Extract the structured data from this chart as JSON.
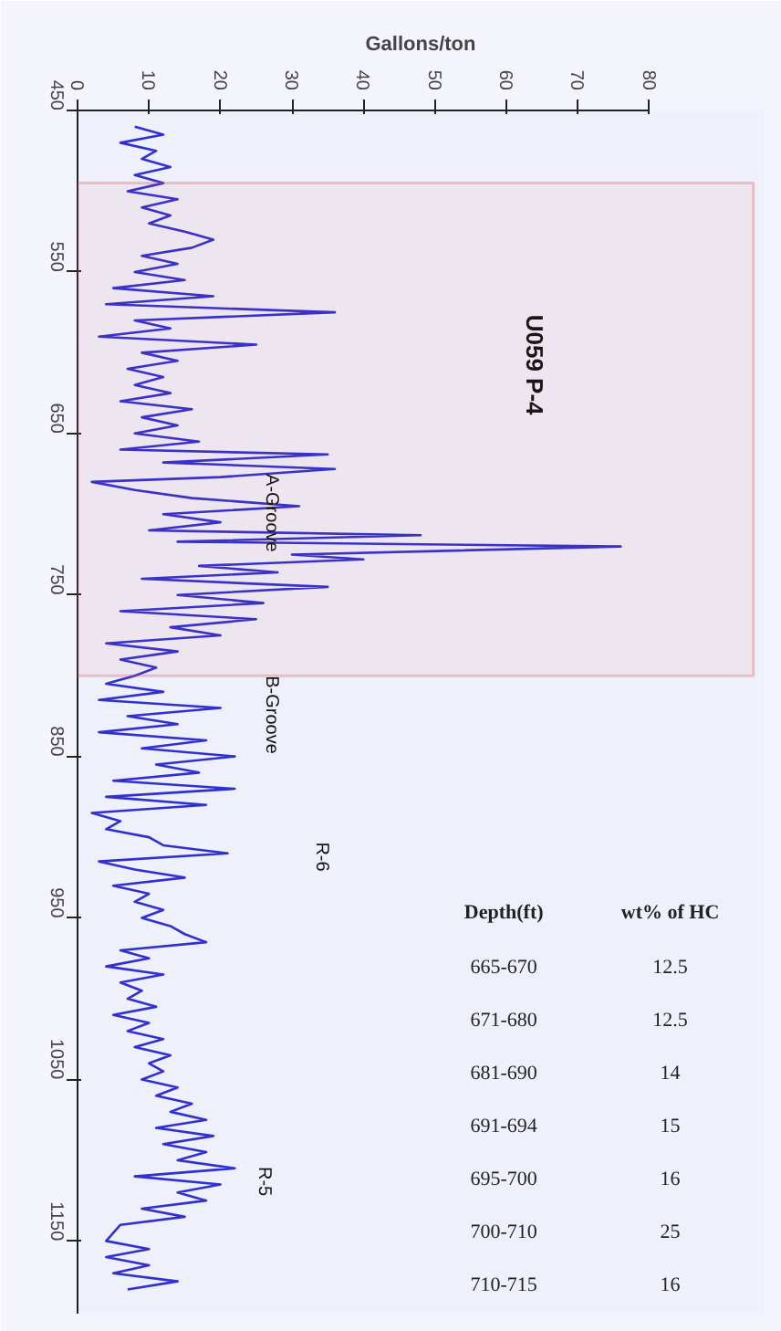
{
  "chart_data": {
    "type": "line",
    "orientation": "horizontal",
    "xlabel": "Gallons/ton",
    "xlim": [
      0,
      80
    ],
    "xticks": [
      0,
      10,
      20,
      30,
      40,
      50,
      60,
      70,
      80
    ],
    "ylim": [
      1195,
      450
    ],
    "yticks": [
      450,
      550,
      650,
      750,
      850,
      950,
      1050,
      1150
    ],
    "grid": false,
    "marker": "none",
    "line_style": "solid",
    "bands": [
      {
        "axis": "y",
        "from": 495,
        "to": 800,
        "label": "U059 P-4",
        "color": "#e05050"
      }
    ],
    "annotations": [
      {
        "text": "A-Groove",
        "x": 27,
        "y": 675
      },
      "B-Groove",
      "R-6",
      "R-5",
      "Depth(ft)",
      "wt% of HC",
      "665-670",
      "12.5",
      "671-680",
      "12.5",
      "681-690",
      "14",
      "691-694",
      "15",
      "695-700",
      "16",
      "700-710",
      "25",
      "710-715",
      "16"
    ],
    "series": [
      {
        "color": "#3030d0",
        "x": [
          460,
          465,
          470,
          475,
          480,
          485,
          490,
          495,
          500,
          505,
          510,
          515,
          520,
          525,
          530,
          535,
          540,
          545,
          550,
          555,
          560,
          565,
          570,
          575,
          580,
          585,
          590,
          595,
          600,
          605,
          610,
          615,
          620,
          625,
          630,
          635,
          640,
          645,
          650,
          655,
          660,
          663,
          668,
          672,
          677,
          680,
          685,
          690,
          695,
          700,
          705,
          710,
          713,
          717,
          720,
          725,
          728,
          732,
          736,
          740,
          745,
          750,
          755,
          760,
          765,
          770,
          775,
          780,
          785,
          790,
          795,
          800,
          805,
          810,
          815,
          820,
          825,
          830,
          835,
          840,
          845,
          850,
          855,
          860,
          865,
          870,
          875,
          880,
          885,
          890,
          895,
          900,
          905,
          910,
          915,
          920,
          925,
          930,
          935,
          940,
          945,
          950,
          955,
          960,
          965,
          970,
          975,
          980,
          985,
          990,
          995,
          1000,
          1005,
          1010,
          1015,
          1020,
          1025,
          1030,
          1035,
          1040,
          1045,
          1050,
          1055,
          1060,
          1065,
          1070,
          1075,
          1080,
          1085,
          1090,
          1095,
          1100,
          1105,
          1110,
          1115,
          1120,
          1125,
          1130,
          1135,
          1140,
          1150,
          1155,
          1160,
          1165,
          1170,
          1175,
          1180
        ],
        "values": [
          8,
          12,
          6,
          11,
          9,
          13,
          8,
          12,
          7,
          14,
          9,
          13,
          10,
          15,
          19,
          16,
          9,
          14,
          8,
          15,
          5,
          19,
          4,
          36,
          8,
          13,
          3,
          25,
          9,
          14,
          7,
          12,
          8,
          13,
          6,
          16,
          9,
          14,
          8,
          17,
          6,
          35,
          12,
          36,
          20,
          2,
          8,
          16,
          31,
          12,
          20,
          10,
          48,
          14,
          76,
          30,
          40,
          17,
          28,
          9,
          35,
          14,
          26,
          6,
          25,
          13,
          20,
          4,
          14,
          6,
          11,
          8,
          4,
          12,
          3,
          20,
          7,
          14,
          3,
          18,
          9,
          22,
          11,
          17,
          5,
          22,
          4,
          18,
          2,
          6,
          4,
          10,
          12,
          21,
          3,
          8,
          15,
          5,
          10,
          8,
          12,
          9,
          13,
          15,
          18,
          6,
          10,
          4,
          12,
          6,
          9,
          7,
          11,
          5,
          10,
          7,
          12,
          8,
          13,
          10,
          12,
          9,
          14,
          11,
          16,
          13,
          18,
          11,
          19,
          12,
          18,
          14,
          22,
          8,
          20,
          14,
          18,
          9,
          15,
          6,
          4,
          10,
          4,
          10,
          5,
          14,
          7
        ]
      }
    ]
  }
}
